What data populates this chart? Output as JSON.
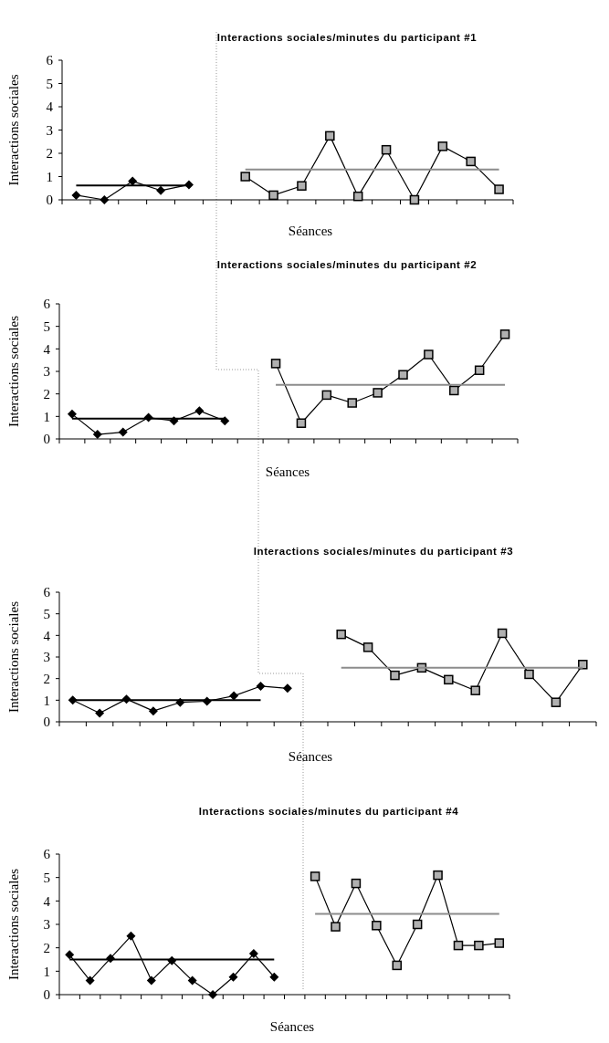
{
  "chart_data": [
    {
      "type": "line",
      "title": "Interactions sociales/minutes du participant #1",
      "xlabel": "Séances",
      "ylabel": "Interactions sociales",
      "categories": [
        null,
        null,
        null,
        null,
        null,
        null,
        null,
        null,
        null,
        null,
        null,
        null,
        null,
        null,
        null,
        null
      ],
      "ylim": [
        0,
        6
      ],
      "yticks": [
        0,
        1,
        2,
        3,
        4,
        5,
        6
      ],
      "tick_labels": "y",
      "grid": false,
      "series": [
        {
          "color": "#000000",
          "marker": "diamond",
          "values": [
            0.2,
            0,
            0.8,
            0.4,
            0.65,
            null,
            null,
            null,
            null,
            null,
            null,
            null,
            null,
            null,
            null,
            null
          ]
        },
        {
          "color": "#000000",
          "marker": "none",
          "values": [
            0.62,
            0.62,
            0.62,
            0.62,
            0.62,
            null,
            null,
            null,
            null,
            null,
            null,
            null,
            null,
            null,
            null,
            null
          ]
        },
        {
          "color": "#000000",
          "marker": "square",
          "values": [
            null,
            null,
            null,
            null,
            null,
            null,
            1.0,
            0.2,
            0.6,
            2.75,
            0.15,
            2.15,
            0,
            2.3,
            1.65,
            0.45
          ]
        },
        {
          "color": "#8c8c8c",
          "marker": "none",
          "values": [
            null,
            null,
            null,
            null,
            null,
            null,
            1.3,
            1.3,
            1.3,
            1.3,
            1.3,
            1.3,
            1.3,
            1.3,
            1.3,
            1.3
          ]
        }
      ]
    },
    {
      "type": "line",
      "title": "Interactions sociales/minutes du participant #2",
      "xlabel": "Séances",
      "ylabel": "Interactions sociales",
      "categories": [
        null,
        null,
        null,
        null,
        null,
        null,
        null,
        null,
        null,
        null,
        null,
        null,
        null,
        null,
        null,
        null,
        null,
        null
      ],
      "ylim": [
        0,
        6
      ],
      "yticks": [
        0,
        1,
        2,
        3,
        4,
        5,
        6
      ],
      "tick_labels": "y",
      "grid": false,
      "series": [
        {
          "color": "#000000",
          "marker": "diamond",
          "values": [
            1.1,
            0.2,
            0.3,
            0.95,
            0.8,
            1.25,
            0.8,
            null,
            null,
            null,
            null,
            null,
            null,
            null,
            null,
            null,
            null,
            null
          ]
        },
        {
          "color": "#000000",
          "marker": "none",
          "values": [
            0.9,
            0.9,
            0.9,
            0.9,
            0.9,
            0.9,
            0.9,
            null,
            null,
            null,
            null,
            null,
            null,
            null,
            null,
            null,
            null,
            null
          ]
        },
        {
          "color": "#000000",
          "marker": "square",
          "values": [
            null,
            null,
            null,
            null,
            null,
            null,
            null,
            null,
            3.35,
            0.7,
            1.95,
            1.6,
            2.05,
            2.85,
            3.75,
            2.15,
            3.05,
            4.65
          ]
        },
        {
          "color": "#8c8c8c",
          "marker": "none",
          "values": [
            null,
            null,
            null,
            null,
            null,
            null,
            null,
            null,
            2.4,
            2.4,
            2.4,
            2.4,
            2.4,
            2.4,
            2.4,
            2.4,
            2.4,
            2.4
          ]
        }
      ]
    },
    {
      "type": "line",
      "title": "Interactions sociales/minutes du participant #3",
      "xlabel": "Séances",
      "ylabel": "Interactions sociales",
      "categories": [
        null,
        null,
        null,
        null,
        null,
        null,
        null,
        null,
        null,
        null,
        null,
        null,
        null,
        null,
        null,
        null,
        null,
        null,
        null,
        null
      ],
      "ylim": [
        0,
        6
      ],
      "yticks": [
        0,
        1,
        2,
        3,
        4,
        5,
        6
      ],
      "tick_labels": "y",
      "grid": false,
      "series": [
        {
          "color": "#000000",
          "marker": "diamond",
          "values": [
            1.0,
            0.4,
            1.05,
            0.5,
            0.9,
            0.95,
            1.2,
            1.65,
            1.55,
            null,
            null,
            null,
            null,
            null,
            null,
            null,
            null,
            null,
            null,
            null
          ]
        },
        {
          "color": "#000000",
          "marker": "none",
          "values": [
            1.0,
            1.0,
            1.0,
            1.0,
            1.0,
            1.0,
            1.0,
            1.0,
            null,
            null,
            null,
            null,
            null,
            null,
            null,
            null,
            null,
            null,
            null,
            null
          ]
        },
        {
          "color": "#000000",
          "marker": "square",
          "values": [
            null,
            null,
            null,
            null,
            null,
            null,
            null,
            null,
            null,
            null,
            4.05,
            3.45,
            2.15,
            2.5,
            1.95,
            1.45,
            4.1,
            2.2,
            0.9,
            2.65
          ]
        },
        {
          "color": "#8c8c8c",
          "marker": "none",
          "values": [
            null,
            null,
            null,
            null,
            null,
            null,
            null,
            null,
            null,
            null,
            2.5,
            2.5,
            2.5,
            2.5,
            2.5,
            2.5,
            2.5,
            2.5,
            2.5,
            2.5
          ]
        }
      ]
    },
    {
      "type": "line",
      "title": "Interactions sociales/minutes du participant #4",
      "xlabel": "Séances",
      "ylabel": "Interactions sociales",
      "categories": [
        null,
        null,
        null,
        null,
        null,
        null,
        null,
        null,
        null,
        null,
        null,
        null,
        null,
        null,
        null,
        null,
        null,
        null,
        null,
        null,
        null,
        null
      ],
      "ylim": [
        0,
        6
      ],
      "yticks": [
        0,
        1,
        2,
        3,
        4,
        5,
        6
      ],
      "tick_labels": "y",
      "grid": false,
      "series": [
        {
          "color": "#000000",
          "marker": "diamond",
          "values": [
            1.7,
            0.6,
            1.55,
            2.5,
            0.6,
            1.45,
            0.6,
            0,
            0.75,
            1.75,
            0.75,
            null,
            null,
            null,
            null,
            null,
            null,
            null,
            null,
            null,
            null,
            null
          ]
        },
        {
          "color": "#000000",
          "marker": "none",
          "values": [
            1.5,
            1.5,
            1.5,
            1.5,
            1.5,
            1.5,
            1.5,
            1.5,
            1.5,
            1.5,
            1.5,
            null,
            null,
            null,
            null,
            null,
            null,
            null,
            null,
            null,
            null,
            null
          ]
        },
        {
          "color": "#000000",
          "marker": "square",
          "values": [
            null,
            null,
            null,
            null,
            null,
            null,
            null,
            null,
            null,
            null,
            null,
            null,
            5.05,
            2.9,
            4.75,
            2.95,
            1.25,
            3.0,
            5.1,
            2.1,
            2.1,
            2.2
          ]
        },
        {
          "color": "#8c8c8c",
          "marker": "none",
          "values": [
            null,
            null,
            null,
            null,
            null,
            null,
            null,
            null,
            null,
            null,
            null,
            null,
            3.45,
            3.45,
            3.45,
            3.45,
            3.45,
            3.45,
            3.45,
            3.45,
            3.45,
            3.45
          ]
        }
      ]
    }
  ]
}
